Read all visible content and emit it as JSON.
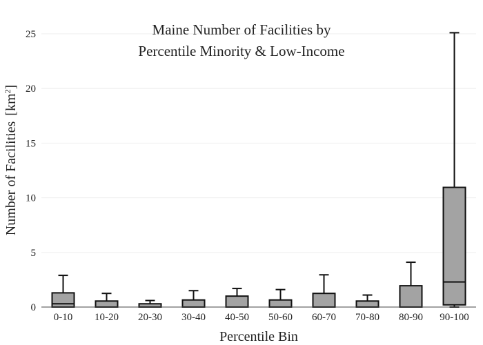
{
  "chart_data": {
    "type": "box",
    "title_lines": [
      "Maine Number of Facilities by",
      "Percentile Minority & Low-Income"
    ],
    "xlabel": "Percentile Bin",
    "ylabel": "Number of Facilities",
    "ylabel_unit_base": "[km",
    "ylabel_unit_sup": "2",
    "ylabel_unit_close": "]",
    "ylim": [
      0,
      26.2
    ],
    "yticks": [
      0,
      5,
      10,
      15,
      20,
      25
    ],
    "grid": true,
    "box_fill": "#a3a3a3",
    "line_color": "#111111",
    "categories": [
      "0-10",
      "10-20",
      "20-30",
      "30-40",
      "40-50",
      "50-60",
      "60-70",
      "70-80",
      "80-90",
      "90-100"
    ],
    "boxes": [
      {
        "min": 0,
        "q1": 0,
        "median": 0.3,
        "q3": 1.3,
        "max": 2.9
      },
      {
        "min": 0,
        "q1": 0,
        "median": 0,
        "q3": 0.55,
        "max": 1.25
      },
      {
        "min": 0,
        "q1": 0,
        "median": 0,
        "q3": 0.3,
        "max": 0.6
      },
      {
        "min": 0,
        "q1": 0,
        "median": 0,
        "q3": 0.65,
        "max": 1.5
      },
      {
        "min": 0,
        "q1": 0,
        "median": 0,
        "q3": 1.0,
        "max": 1.7
      },
      {
        "min": 0,
        "q1": 0,
        "median": 0,
        "q3": 0.65,
        "max": 1.6
      },
      {
        "min": 0,
        "q1": 0,
        "median": 0,
        "q3": 1.25,
        "max": 2.95
      },
      {
        "min": 0,
        "q1": 0,
        "median": 0,
        "q3": 0.55,
        "max": 1.1
      },
      {
        "min": 0,
        "q1": 0,
        "median": 0,
        "q3": 1.95,
        "max": 4.1
      },
      {
        "min": 0,
        "q1": 0.2,
        "median": 2.3,
        "q3": 10.95,
        "max": 25.1
      }
    ]
  }
}
